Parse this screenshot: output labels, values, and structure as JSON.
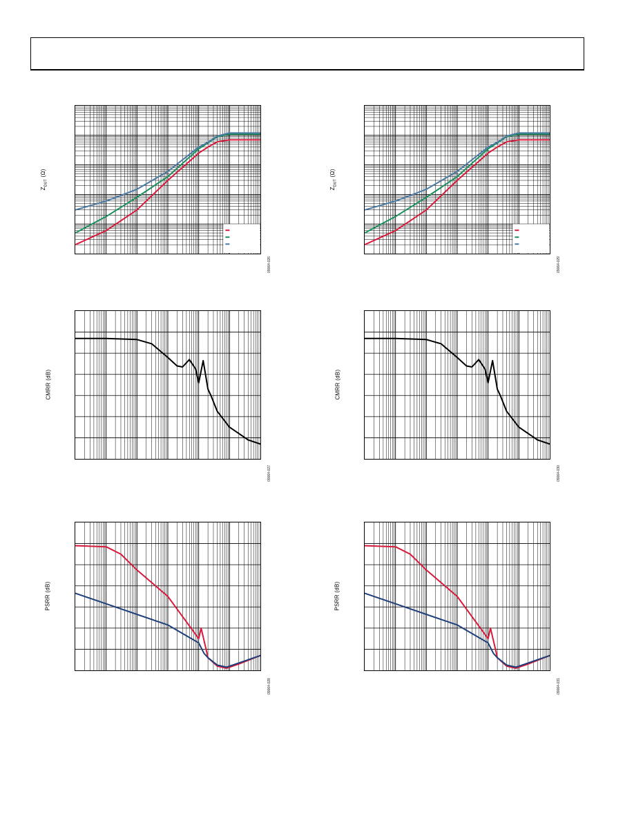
{
  "colors": {
    "red": "#d7193a",
    "green": "#1a8f5c",
    "blue_gray": "#4a7aa4",
    "navy": "#1f3f7a",
    "black": "#000000"
  },
  "chart_data": [
    {
      "id": "zdut-left",
      "type": "line",
      "ylabel": "Z",
      "ylabel_sub": "DUT",
      "ylabel_unit": "(Ω)",
      "figure_id": "09064-026",
      "x_scale": "log",
      "y_scale": "log",
      "xlim": [
        1,
        1000000
      ],
      "ylim": [
        0.01,
        1000
      ],
      "legend": "bottom-right",
      "series": [
        {
          "color": "red",
          "x": [
            1,
            10,
            100,
            1000,
            10000,
            20000,
            40000,
            100000,
            1000000
          ],
          "y": [
            0.02,
            0.06,
            0.3,
            3,
            25,
            40,
            60,
            70,
            70
          ]
        },
        {
          "color": "green",
          "x": [
            1,
            10,
            100,
            1000,
            10000,
            20000,
            40000,
            100000,
            1000000
          ],
          "y": [
            0.05,
            0.18,
            0.8,
            4,
            35,
            55,
            90,
            110,
            110
          ]
        },
        {
          "color": "blue_gray",
          "x": [
            1,
            10,
            100,
            1000,
            10000,
            20000,
            40000,
            100000,
            1000000
          ],
          "y": [
            0.3,
            0.6,
            1.5,
            6,
            40,
            58,
            95,
            120,
            120
          ]
        }
      ]
    },
    {
      "id": "zdut-right",
      "type": "line",
      "ylabel": "Z",
      "ylabel_sub": "DUT",
      "ylabel_unit": "(Ω)",
      "figure_id": "09064-029",
      "x_scale": "log",
      "y_scale": "log",
      "xlim": [
        1,
        1000000
      ],
      "ylim": [
        0.01,
        1000
      ],
      "legend": "bottom-right",
      "series": [
        {
          "color": "red",
          "x": [
            1,
            10,
            100,
            1000,
            10000,
            20000,
            40000,
            100000,
            1000000
          ],
          "y": [
            0.02,
            0.06,
            0.3,
            3,
            25,
            40,
            60,
            70,
            70
          ]
        },
        {
          "color": "green",
          "x": [
            1,
            10,
            100,
            1000,
            10000,
            20000,
            40000,
            100000,
            1000000
          ],
          "y": [
            0.05,
            0.18,
            0.8,
            4,
            35,
            55,
            90,
            110,
            110
          ]
        },
        {
          "color": "blue_gray",
          "x": [
            1,
            10,
            100,
            1000,
            10000,
            20000,
            40000,
            100000,
            1000000
          ],
          "y": [
            0.3,
            0.6,
            1.5,
            6,
            40,
            58,
            95,
            120,
            120
          ]
        }
      ]
    },
    {
      "id": "cmrr-left",
      "type": "line",
      "ylabel": "CMRR (dB)",
      "figure_id": "09064-027",
      "x_scale": "log",
      "y_scale": "linear",
      "xlim": [
        1,
        1000000
      ],
      "ylim": [
        0,
        140
      ],
      "series": [
        {
          "color": "black",
          "x": [
            1,
            10,
            100,
            300,
            1000,
            2000,
            3000,
            5000,
            8000,
            10000,
            14000,
            20000,
            25000,
            40000,
            100000,
            400000,
            1000000
          ],
          "y": [
            114,
            114,
            113,
            109,
            96,
            88,
            87,
            94,
            85,
            72,
            93,
            66,
            60,
            45,
            30,
            18,
            14
          ]
        }
      ]
    },
    {
      "id": "cmrr-right",
      "type": "line",
      "ylabel": "CMRR (dB)",
      "figure_id": "09064-030",
      "x_scale": "log",
      "y_scale": "linear",
      "xlim": [
        1,
        1000000
      ],
      "ylim": [
        0,
        140
      ],
      "series": [
        {
          "color": "black",
          "x": [
            1,
            10,
            100,
            300,
            1000,
            2000,
            3000,
            5000,
            8000,
            10000,
            14000,
            20000,
            25000,
            40000,
            100000,
            400000,
            1000000
          ],
          "y": [
            114,
            114,
            113,
            109,
            96,
            88,
            87,
            94,
            85,
            72,
            93,
            66,
            60,
            45,
            30,
            18,
            14
          ]
        }
      ]
    },
    {
      "id": "psrr-left",
      "type": "line",
      "ylabel": "PSRR (dB)",
      "figure_id": "09064-028",
      "x_scale": "log",
      "y_scale": "linear",
      "xlim": [
        1,
        1000000
      ],
      "ylim": [
        0,
        140
      ],
      "series": [
        {
          "color": "red",
          "x": [
            1,
            10,
            30,
            100,
            1000,
            10000,
            12000,
            15000,
            18000,
            20000,
            40000,
            80000,
            200000,
            1000000
          ],
          "y": [
            118,
            117,
            110,
            95,
            70,
            30,
            40,
            28,
            18,
            12,
            4,
            2,
            6,
            14
          ]
        },
        {
          "color": "navy",
          "x": [
            1,
            10,
            100,
            1000,
            10000,
            15000,
            20000,
            40000,
            80000,
            200000,
            1000000
          ],
          "y": [
            73,
            63,
            53,
            43,
            26,
            16,
            12,
            5,
            3,
            7,
            14
          ]
        }
      ]
    },
    {
      "id": "psrr-right",
      "type": "line",
      "ylabel": "PSRR (dB)",
      "figure_id": "09064-031",
      "x_scale": "log",
      "y_scale": "linear",
      "xlim": [
        1,
        1000000
      ],
      "ylim": [
        0,
        140
      ],
      "series": [
        {
          "color": "red",
          "x": [
            1,
            10,
            30,
            100,
            1000,
            10000,
            12000,
            15000,
            18000,
            20000,
            40000,
            80000,
            200000,
            1000000
          ],
          "y": [
            118,
            117,
            110,
            95,
            70,
            30,
            40,
            28,
            18,
            12,
            4,
            2,
            6,
            14
          ]
        },
        {
          "color": "navy",
          "x": [
            1,
            10,
            100,
            1000,
            10000,
            15000,
            20000,
            40000,
            80000,
            200000,
            1000000
          ],
          "y": [
            73,
            63,
            53,
            43,
            26,
            16,
            12,
            5,
            3,
            7,
            14
          ]
        }
      ]
    }
  ]
}
